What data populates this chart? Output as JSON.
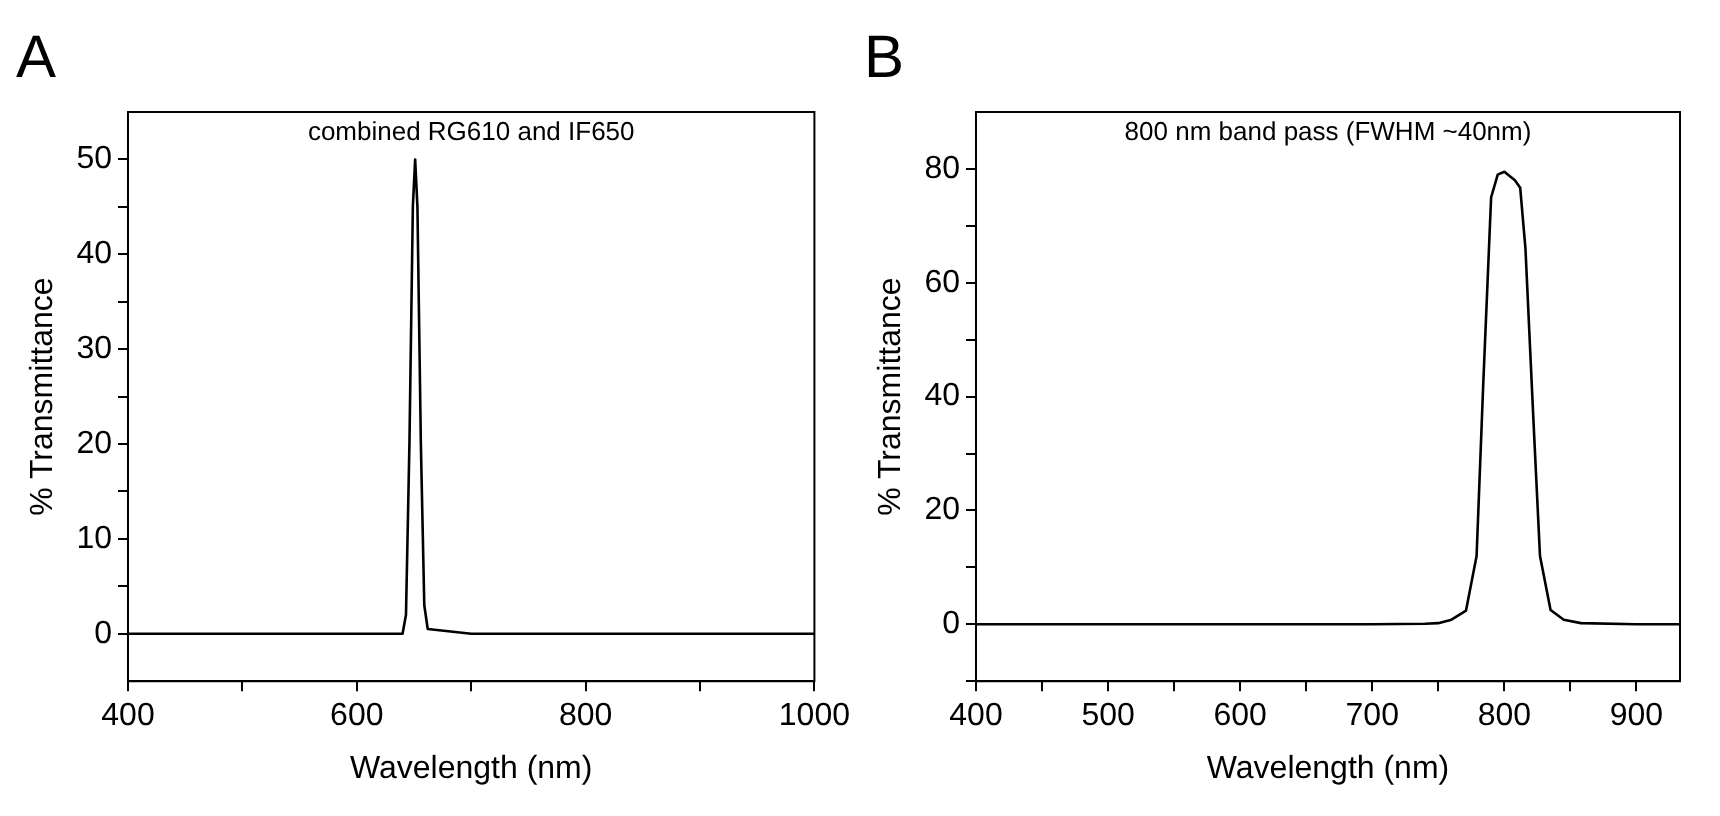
{
  "chart_data": [
    {
      "type": "line",
      "title": "A",
      "xlabel": "Wavelength (nm)",
      "ylabel": "% Transmittance",
      "annotations": [
        "combined RG610 and IF650"
      ],
      "series": [
        {
          "color": "#000000",
          "x": [
            400,
            500,
            600,
            640,
            643,
            646,
            649,
            651,
            653,
            656,
            659,
            662,
            700,
            750,
            800,
            850,
            900,
            950,
            1000
          ],
          "values": [
            0,
            0,
            0,
            0,
            2,
            20,
            45,
            50,
            45,
            20,
            3,
            0.5,
            0,
            0,
            0,
            0,
            0,
            0,
            0
          ]
        }
      ],
      "xlim": [
        400,
        1000
      ],
      "xticks": [
        400,
        {
          "value": 500,
          "label": null
        },
        600,
        {
          "value": 700,
          "label": null
        },
        800,
        {
          "value": 900,
          "label": null
        },
        1000
      ],
      "ylim": [
        -5,
        55
      ],
      "yticks": [
        0,
        {
          "value": 5,
          "label": null
        },
        10,
        {
          "value": 15,
          "label": null
        },
        20,
        {
          "value": 25,
          "label": null
        },
        30,
        {
          "value": 35,
          "label": null
        },
        40,
        {
          "value": 45,
          "label": null
        },
        50
      ],
      "grid": false,
      "legend": false,
      "marker": "none",
      "line_style": "solid"
    },
    {
      "type": "line",
      "title": "B",
      "xlabel": "Wavelength (nm)",
      "ylabel": "% Transmittance",
      "annotations": [
        "800 nm band pass (FWHM ~40nm)"
      ],
      "series": [
        {
          "color": "#000000",
          "x": [
            400,
            500,
            600,
            700,
            740,
            750,
            760,
            771,
            779,
            784,
            790,
            795,
            800,
            808,
            812,
            816,
            822,
            827,
            835,
            845,
            858,
            900,
            933
          ],
          "values": [
            0,
            0,
            0,
            0,
            0.1,
            0.2,
            0.8,
            2.4,
            12,
            42,
            75,
            79,
            79.5,
            78,
            76.7,
            66,
            36,
            12,
            2.5,
            0.8,
            0.2,
            0,
            0
          ]
        }
      ],
      "xlim": [
        400,
        933
      ],
      "xticks": [
        400,
        {
          "value": 450,
          "label": null
        },
        500,
        {
          "value": 550,
          "label": null
        },
        600,
        {
          "value": 650,
          "label": null
        },
        700,
        {
          "value": 750,
          "label": null
        },
        800,
        {
          "value": 850,
          "label": null
        },
        900
      ],
      "ylim": [
        -10,
        90
      ],
      "yticks": [
        {
          "value": -10,
          "label": null
        },
        0,
        {
          "value": 10,
          "label": null
        },
        20,
        {
          "value": 30,
          "label": null
        },
        40,
        {
          "value": 50,
          "label": null
        },
        60,
        {
          "value": 70,
          "label": null
        },
        80
      ],
      "grid": false,
      "legend": false,
      "marker": "none",
      "line_style": "solid"
    }
  ]
}
